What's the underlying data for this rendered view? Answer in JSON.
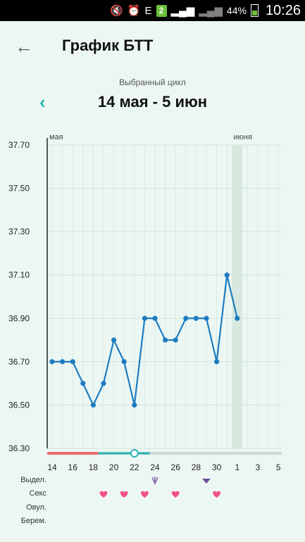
{
  "status_bar": {
    "battery_percent": "44%",
    "time": "10:26",
    "sim_badge": "2",
    "network_label": "E"
  },
  "header": {
    "title": "График БТТ"
  },
  "cycle": {
    "caption": "Выбранный цикл",
    "range": "14 мая - 5 июн"
  },
  "colors": {
    "line": "#1f7cc1",
    "accent": "#2cb3b4",
    "period": "#f06a6a",
    "heart": "#f0508a",
    "highlight": "#d7e8de"
  },
  "chart_data": {
    "type": "line",
    "ylim": [
      36.3,
      37.7
    ],
    "y_ticks": [
      "37.70",
      "37.50",
      "37.30",
      "37.10",
      "36.90",
      "36.70",
      "36.50",
      "36.30"
    ],
    "x_tick_labels": [
      "14",
      "16",
      "18",
      "20",
      "22",
      "24",
      "26",
      "28",
      "30",
      "1",
      "3",
      "5"
    ],
    "month_labels": [
      {
        "label": "мая",
        "day_index": 0
      },
      {
        "label": "июня",
        "day_index": 18
      }
    ],
    "highlight_day_index": 18,
    "days": [
      "14",
      "15",
      "16",
      "17",
      "18",
      "19",
      "20",
      "21",
      "22",
      "23",
      "24",
      "25",
      "26",
      "27",
      "28",
      "29",
      "30",
      "31",
      "1"
    ],
    "values": [
      36.7,
      36.7,
      36.7,
      36.6,
      36.5,
      36.6,
      36.8,
      36.7,
      36.5,
      36.9,
      36.9,
      36.8,
      36.8,
      36.9,
      36.9,
      36.9,
      36.7,
      37.1,
      36.9
    ],
    "period_days": [
      0,
      4
    ],
    "fertile_days": [
      5,
      9
    ],
    "ovulation_marker_day": 8
  },
  "markers": {
    "rows": [
      "Выдел.",
      "Секс",
      "Овул.",
      "Берем."
    ],
    "discharge_days": [
      10,
      15
    ],
    "sex_days": [
      5,
      7,
      9,
      12,
      16
    ]
  },
  "icons": {
    "back": "arrow-left-icon",
    "prev": "chevron-left-icon",
    "heart": "heart-icon",
    "discharge": "drop-icon"
  }
}
